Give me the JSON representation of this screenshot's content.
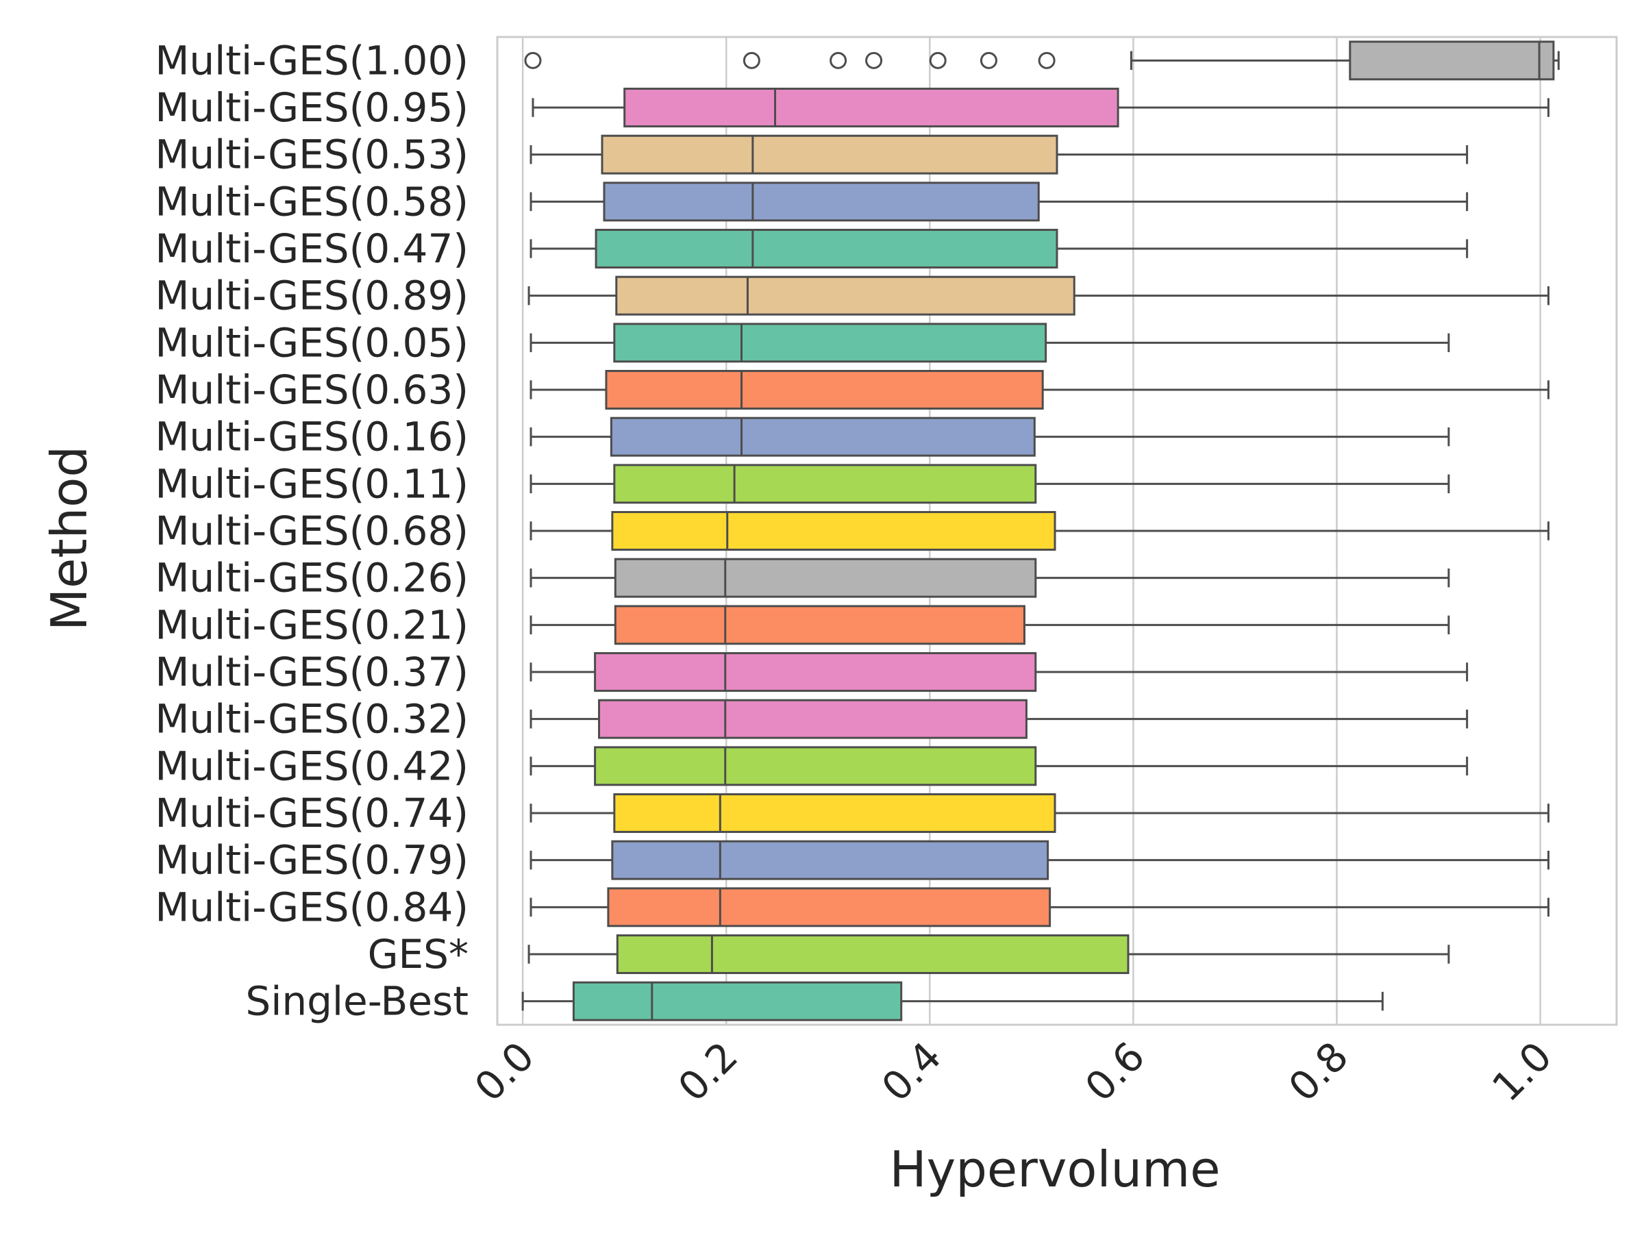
{
  "chart_data": {
    "type": "boxplot",
    "orientation": "horizontal",
    "xlabel": "Hypervolume",
    "ylabel": "Method",
    "xlim": [
      -0.025,
      1.075
    ],
    "xticks": [
      0.0,
      0.2,
      0.4,
      0.6,
      0.8,
      1.0
    ],
    "xtick_labels": [
      "0.0",
      "0.2",
      "0.4",
      "0.6",
      "0.8",
      "1.0"
    ],
    "grid": "vertical",
    "categories": [
      "Multi-GES(1.00)",
      "Multi-GES(0.95)",
      "Multi-GES(0.53)",
      "Multi-GES(0.58)",
      "Multi-GES(0.47)",
      "Multi-GES(0.89)",
      "Multi-GES(0.05)",
      "Multi-GES(0.63)",
      "Multi-GES(0.16)",
      "Multi-GES(0.11)",
      "Multi-GES(0.68)",
      "Multi-GES(0.26)",
      "Multi-GES(0.21)",
      "Multi-GES(0.37)",
      "Multi-GES(0.32)",
      "Multi-GES(0.42)",
      "Multi-GES(0.74)",
      "Multi-GES(0.79)",
      "Multi-GES(0.84)",
      "GES*",
      "Single-Best"
    ],
    "boxes": [
      {
        "whislo": 0.598,
        "q1": 0.813,
        "med": 0.999,
        "q3": 1.013,
        "whishi": 1.018,
        "fliers": [
          0.01,
          0.225,
          0.31,
          0.345,
          0.408,
          0.458,
          0.515
        ],
        "color": "#b3b3b3"
      },
      {
        "whislo": 0.01,
        "q1": 0.1,
        "med": 0.248,
        "q3": 0.585,
        "whishi": 1.008,
        "fliers": [],
        "color": "#e78ac3"
      },
      {
        "whislo": 0.008,
        "q1": 0.078,
        "med": 0.226,
        "q3": 0.525,
        "whishi": 0.928,
        "fliers": [],
        "color": "#e5c494"
      },
      {
        "whislo": 0.008,
        "q1": 0.08,
        "med": 0.226,
        "q3": 0.507,
        "whishi": 0.928,
        "fliers": [],
        "color": "#8da0cb"
      },
      {
        "whislo": 0.008,
        "q1": 0.072,
        "med": 0.226,
        "q3": 0.525,
        "whishi": 0.928,
        "fliers": [],
        "color": "#66c2a5"
      },
      {
        "whislo": 0.006,
        "q1": 0.092,
        "med": 0.221,
        "q3": 0.542,
        "whishi": 1.008,
        "fliers": [],
        "color": "#e5c494"
      },
      {
        "whislo": 0.008,
        "q1": 0.09,
        "med": 0.215,
        "q3": 0.514,
        "whishi": 0.91,
        "fliers": [],
        "color": "#66c2a5"
      },
      {
        "whislo": 0.008,
        "q1": 0.082,
        "med": 0.215,
        "q3": 0.511,
        "whishi": 1.008,
        "fliers": [],
        "color": "#fc8d62"
      },
      {
        "whislo": 0.008,
        "q1": 0.087,
        "med": 0.215,
        "q3": 0.503,
        "whishi": 0.91,
        "fliers": [],
        "color": "#8da0cb"
      },
      {
        "whislo": 0.008,
        "q1": 0.09,
        "med": 0.208,
        "q3": 0.504,
        "whishi": 0.91,
        "fliers": [],
        "color": "#a6d854"
      },
      {
        "whislo": 0.008,
        "q1": 0.088,
        "med": 0.201,
        "q3": 0.523,
        "whishi": 1.008,
        "fliers": [],
        "color": "#ffd92f"
      },
      {
        "whislo": 0.008,
        "q1": 0.091,
        "med": 0.199,
        "q3": 0.504,
        "whishi": 0.91,
        "fliers": [],
        "color": "#b3b3b3"
      },
      {
        "whislo": 0.008,
        "q1": 0.091,
        "med": 0.199,
        "q3": 0.493,
        "whishi": 0.91,
        "fliers": [],
        "color": "#fc8d62"
      },
      {
        "whislo": 0.008,
        "q1": 0.071,
        "med": 0.199,
        "q3": 0.504,
        "whishi": 0.928,
        "fliers": [],
        "color": "#e78ac3"
      },
      {
        "whislo": 0.008,
        "q1": 0.075,
        "med": 0.199,
        "q3": 0.495,
        "whishi": 0.928,
        "fliers": [],
        "color": "#e78ac3"
      },
      {
        "whislo": 0.008,
        "q1": 0.071,
        "med": 0.199,
        "q3": 0.504,
        "whishi": 0.928,
        "fliers": [],
        "color": "#a6d854"
      },
      {
        "whislo": 0.008,
        "q1": 0.09,
        "med": 0.194,
        "q3": 0.523,
        "whishi": 1.008,
        "fliers": [],
        "color": "#ffd92f"
      },
      {
        "whislo": 0.008,
        "q1": 0.088,
        "med": 0.194,
        "q3": 0.516,
        "whishi": 1.008,
        "fliers": [],
        "color": "#8da0cb"
      },
      {
        "whislo": 0.008,
        "q1": 0.084,
        "med": 0.194,
        "q3": 0.518,
        "whishi": 1.008,
        "fliers": [],
        "color": "#fc8d62"
      },
      {
        "whislo": 0.006,
        "q1": 0.093,
        "med": 0.186,
        "q3": 0.595,
        "whishi": 0.91,
        "fliers": [],
        "color": "#a6d854"
      },
      {
        "whislo": 0.0,
        "q1": 0.05,
        "med": 0.127,
        "q3": 0.372,
        "whishi": 0.845,
        "fliers": [],
        "color": "#66c2a5"
      }
    ]
  }
}
